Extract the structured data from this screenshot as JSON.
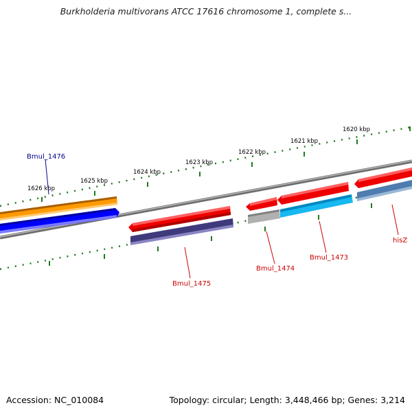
{
  "title": "Burkholderia multivorans ATCC 17616 chromosome 1, complete s...",
  "accession_text": "Accession: NC_010084",
  "summary_text": "Topology: circular; Length: 3,448,466 bp; Genes: 3,214",
  "ruler_labels": [
    "1626 kbp",
    "1625 kbp",
    "1624 kbp",
    "1623 kbp",
    "1622 kbp",
    "1621 kbp",
    "1620 kbp"
  ],
  "genes": [
    {
      "name": "Bmul_1476",
      "color": "#00008b"
    },
    {
      "name": "Bmul_1475",
      "color": "#cc0000"
    },
    {
      "name": "Bmul_1474",
      "color": "#cc0000"
    },
    {
      "name": "Bmul_1473",
      "color": "#cc0000"
    },
    {
      "name": "hisZ",
      "color": "#cc0000"
    }
  ],
  "colors": {
    "backbone": "#808080",
    "ruler_ticks": "#1f7a1f",
    "feature_orange": "#ff9a00",
    "feature_blue": "#0000ff",
    "feature_red": "#ee0000",
    "feature_navy": "#3f3a7c",
    "feature_gray": "#b0b0b0",
    "feature_cyan": "#18b8f0",
    "feature_steel": "#4f7cae"
  }
}
